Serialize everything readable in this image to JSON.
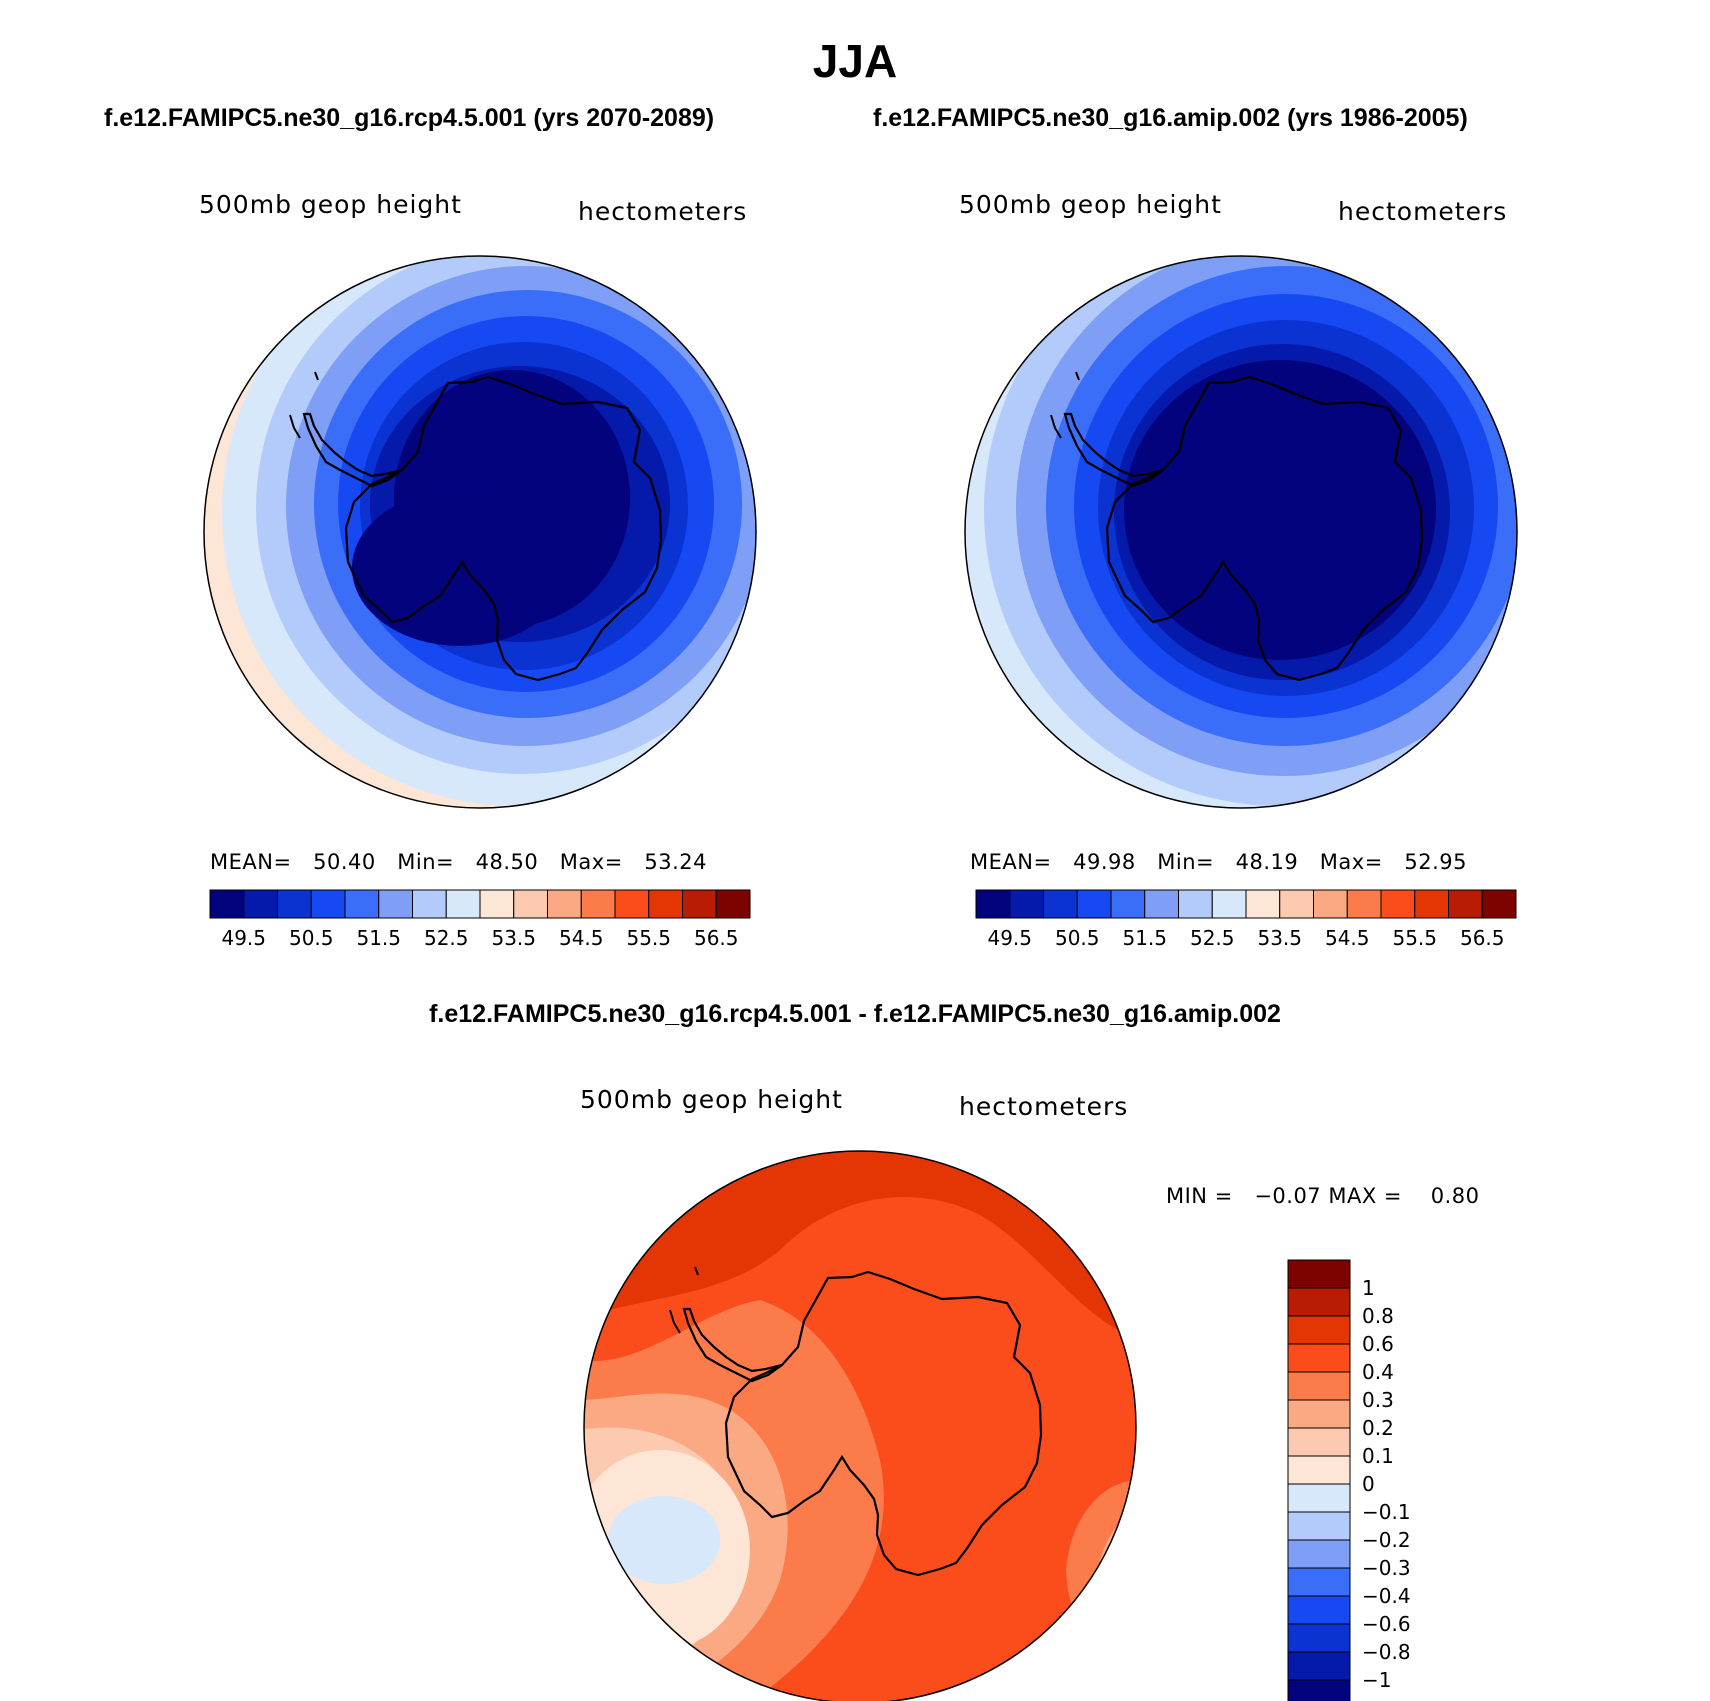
{
  "title": "JJA",
  "panels": [
    {
      "case_label": "f.e12.FAMIPC5.ne30_g16.rcp4.5.001 (yrs 2070-2089)",
      "variable": "500mb geop height",
      "units": "hectometers",
      "stats": {
        "mean_label": "MEAN=",
        "mean": "50.40",
        "min_label": "Min=",
        "min": "48.50",
        "max_label": "Max=",
        "max": "53.24"
      }
    },
    {
      "case_label": "f.e12.FAMIPC5.ne30_g16.amip.002 (yrs 1986-2005)",
      "variable": "500mb geop height",
      "units": "hectometers",
      "stats": {
        "mean_label": "MEAN=",
        "mean": "49.98",
        "min_label": "Min=",
        "min": "48.19",
        "max_label": "Max=",
        "max": "52.95"
      }
    }
  ],
  "difference": {
    "title": "f.e12.FAMIPC5.ne30_g16.rcp4.5.001 - f.e12.FAMIPC5.ne30_g16.amip.002",
    "variable": "500mb geop height",
    "units": "hectometers",
    "minmax_text": "MIN =   −0.07 MAX =    0.80"
  },
  "colorbar_horizontal": {
    "colors": [
      "#04037e",
      "#0519aa",
      "#0a33d2",
      "#1749f2",
      "#3b6ef8",
      "#7e9ff5",
      "#b3cbfb",
      "#d7e8fb",
      "#fde6d5",
      "#fccab1",
      "#fba982",
      "#fb7b4b",
      "#fb4d1c",
      "#e43604",
      "#b81c02",
      "#7d0300"
    ],
    "tick_labels": [
      "49.5",
      "50.5",
      "51.5",
      "52.5",
      "53.5",
      "54.5",
      "55.5",
      "56.5"
    ]
  },
  "colorbar_vertical": {
    "colors": [
      "#7d0300",
      "#b81c02",
      "#e43604",
      "#fb4d1c",
      "#fb7b4b",
      "#fba982",
      "#fccab1",
      "#fde6d5",
      "#d7e8fb",
      "#b3cbfb",
      "#7e9ff5",
      "#3b6ef8",
      "#1749f2",
      "#0a33d2",
      "#0519aa",
      "#04037e"
    ],
    "tick_labels": [
      "1",
      "0.8",
      "0.6",
      "0.4",
      "0.3",
      "0.2",
      "0.1",
      "0",
      "−0.1",
      "−0.2",
      "−0.3",
      "−0.4",
      "−0.6",
      "−0.8",
      "−1"
    ]
  }
}
